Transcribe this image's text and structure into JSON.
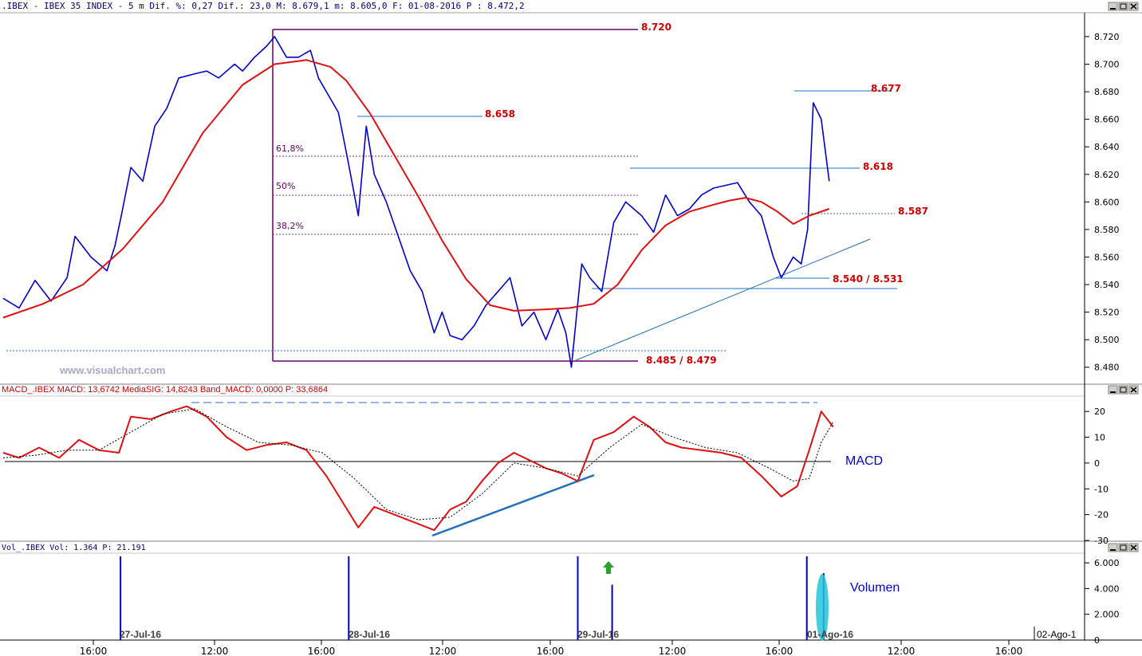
{
  "colors": {
    "price": "#0000cc",
    "ma": "#dd1111",
    "annot_red": "#cc0000",
    "purple": "#660066",
    "fib": "#993366",
    "trend": "#1f6fbf",
    "macd": "#dd1111",
    "signal": "#000000",
    "volume": "#0000cc",
    "vol_highlight": "#22c4d8",
    "arrow": "#2ca02c"
  },
  "icons": {
    "minimize": "minimize-icon",
    "restore": "restore-icon",
    "close": "close-icon"
  },
  "watermark": "www.visualchart.com",
  "x_axis": {
    "time_labels": [
      "16:00",
      "12:00",
      "16:00",
      "12:00",
      "16:00",
      "12:00",
      "16:00",
      "12:00",
      "16:00"
    ],
    "date_labels": [
      "27-Jul-16",
      "28-Jul-16",
      "29-Jul-16",
      "01-Ago-16",
      "02-Ago-1"
    ]
  },
  "chart_data": [
    {
      "type": "line",
      "name": "price",
      "header": ".IBEX - IBEX 35 INDEX -  5 m Dif. %: 0,27 Dif.: 23,0 M: 8.679,1 m: 8.605,0 F: 01-08-2016 P : 8.472,2",
      "ylim": [
        8470,
        8735
      ],
      "y_ticks": [
        "8.720",
        "8.700",
        "8.680",
        "8.660",
        "8.640",
        "8.620",
        "8.600",
        "8.580",
        "8.560",
        "8.540",
        "8.520",
        "8.500",
        "8.480"
      ],
      "y_tick_values": [
        8720,
        8700,
        8680,
        8660,
        8640,
        8620,
        8600,
        8580,
        8560,
        8540,
        8520,
        8500,
        8480
      ],
      "x_range": [
        0,
        1350
      ],
      "series": [
        {
          "x": [
            0,
            20,
            40,
            60,
            80,
            90,
            110,
            130,
            140,
            148,
            160,
            175,
            190,
            205,
            220,
            240,
            255,
            270,
            290,
            300,
            315,
            330,
            340,
            355,
            370,
            385,
            395,
            405,
            420,
            432,
            445,
            455,
            465,
            480,
            495,
            510,
            525,
            540,
            550,
            560,
            575,
            590,
            605,
            620,
            635,
            650,
            665,
            680,
            695,
            705,
            712,
            718,
            725,
            735,
            750,
            765,
            780,
            800,
            815,
            830,
            845,
            860,
            875,
            890,
            905,
            920,
            935,
            950,
            965,
            975,
            990,
            1000,
            1008,
            1015,
            1025,
            1035
          ],
          "values": [
            8530,
            8523,
            8543,
            8528,
            8545,
            8575,
            8560,
            8550,
            8568,
            8590,
            8625,
            8615,
            8655,
            8668,
            8690,
            8693,
            8695,
            8690,
            8700,
            8695,
            8705,
            8713,
            8720,
            8705,
            8705,
            8710,
            8690,
            8680,
            8665,
            8630,
            8590,
            8655,
            8620,
            8600,
            8575,
            8550,
            8535,
            8505,
            8520,
            8503,
            8500,
            8510,
            8525,
            8535,
            8545,
            8510,
            8520,
            8500,
            8522,
            8505,
            8480,
            8515,
            8555,
            8545,
            8535,
            8585,
            8600,
            8590,
            8578,
            8605,
            8590,
            8595,
            8605,
            8610,
            8612,
            8614,
            8600,
            8590,
            8560,
            8545,
            8560,
            8555,
            8580,
            8672,
            8660,
            8615
          ]
        },
        {
          "x": [
            0,
            50,
            100,
            150,
            200,
            250,
            300,
            340,
            380,
            410,
            430,
            460,
            490,
            520,
            550,
            580,
            610,
            640,
            680,
            710,
            740,
            770,
            800,
            830,
            860,
            890,
            910,
            930,
            950,
            970,
            990,
            1010,
            1035
          ],
          "values": [
            8516,
            8526,
            8540,
            8566,
            8600,
            8650,
            8685,
            8700,
            8703,
            8698,
            8688,
            8664,
            8634,
            8604,
            8572,
            8544,
            8525,
            8521,
            8522,
            8523,
            8526,
            8540,
            8565,
            8583,
            8593,
            8598,
            8601,
            8603,
            8600,
            8593,
            8584,
            8590,
            8595
          ]
        }
      ],
      "annotations": [
        "8.720",
        "8.658",
        "8.677",
        "8.618",
        "8.587",
        "8.540 / 8.531",
        "8.485 / 8.479",
        "61,8%",
        "50%",
        "38,2%"
      ]
    },
    {
      "type": "line",
      "name": "macd",
      "header": "MACD_.IBEX MACD: 13,6742 MediaSIG: 14,8243 Band_MACD: 0,0000 P: 33,6864",
      "label": "MACD",
      "ylim": [
        -30,
        25
      ],
      "y_ticks": [
        "20",
        "10",
        "0",
        "-10",
        "-20",
        "-30"
      ],
      "y_tick_values": [
        20,
        10,
        0,
        -10,
        -20,
        -30
      ],
      "x_range": [
        0,
        1350
      ],
      "series": [
        {
          "x": [
            0,
            20,
            45,
            70,
            95,
            120,
            145,
            160,
            185,
            210,
            230,
            255,
            280,
            305,
            330,
            355,
            380,
            405,
            425,
            445,
            465,
            490,
            515,
            540,
            560,
            580,
            600,
            620,
            640,
            660,
            680,
            700,
            720,
            740,
            765,
            790,
            810,
            830,
            850,
            875,
            900,
            925,
            950,
            975,
            995,
            1010,
            1025,
            1040
          ],
          "values": [
            4,
            2,
            6,
            2,
            9,
            5,
            4,
            18,
            17,
            20,
            22,
            18,
            10,
            5,
            7,
            8,
            5,
            -5,
            -15,
            -25,
            -17,
            -20,
            -23,
            -26,
            -18,
            -15,
            -7,
            0,
            4,
            1,
            -2,
            -4,
            -7,
            9,
            12,
            18,
            14,
            8,
            6,
            5,
            4,
            2,
            -5,
            -13,
            -9,
            5,
            20,
            14
          ]
        },
        {
          "x": [
            0,
            40,
            80,
            120,
            160,
            200,
            240,
            280,
            320,
            360,
            400,
            440,
            480,
            520,
            560,
            600,
            640,
            680,
            720,
            760,
            800,
            840,
            880,
            920,
            960,
            990,
            1010,
            1025,
            1040
          ],
          "values": [
            2,
            3,
            5,
            5,
            12,
            19,
            21,
            14,
            8,
            7,
            4,
            -6,
            -18,
            -22,
            -21,
            -12,
            0,
            -2,
            -5,
            6,
            15,
            10,
            6,
            4,
            -2,
            -7,
            -6,
            8,
            16
          ]
        }
      ]
    },
    {
      "type": "bar",
      "name": "volume",
      "header": "Vol_.IBEX Vol: 1.364 P: 21.191",
      "label": "Volumen",
      "ylim": [
        0,
        6500
      ],
      "y_ticks": [
        "6.000",
        "4.000",
        "2.000",
        "0"
      ],
      "y_tick_values": [
        6000,
        4000,
        2000,
        0
      ],
      "x_range": [
        0,
        1350
      ],
      "x": [
        147,
        433,
        720,
        763,
        1007,
        1028
      ],
      "values": [
        6500,
        6500,
        6500,
        4300,
        6500,
        5200
      ]
    }
  ]
}
